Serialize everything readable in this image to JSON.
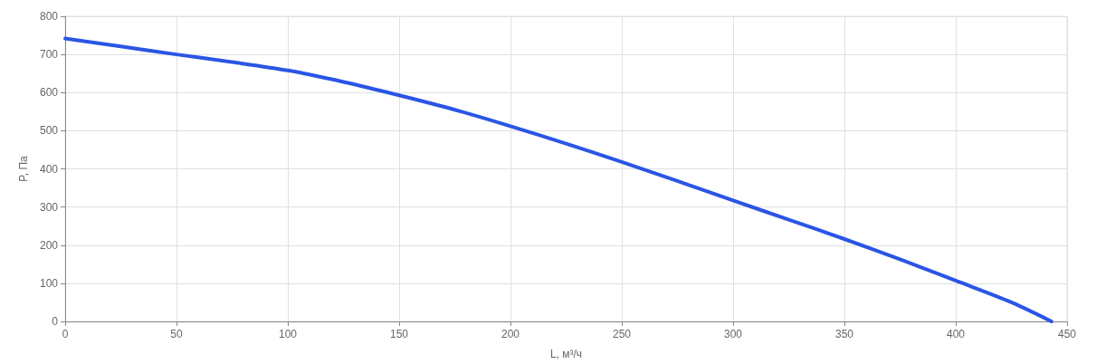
{
  "chart_data": {
    "type": "line",
    "xlabel": "L, м³/ч",
    "ylabel": "P, Па",
    "x": [
      0,
      25,
      50,
      75,
      100,
      125,
      150,
      175,
      200,
      225,
      250,
      275,
      300,
      325,
      350,
      375,
      400,
      425,
      443
    ],
    "series": [
      {
        "color": "#2a55e5",
        "values": [
          742,
          721,
          700,
          680,
          658,
          628,
          593,
          555,
          512,
          466,
          418,
          368,
          317,
          267,
          216,
          163,
          107,
          50,
          0
        ]
      }
    ],
    "xlim": [
      0,
      450
    ],
    "xticks": [
      0,
      50,
      100,
      150,
      200,
      250,
      300,
      350,
      400,
      450
    ],
    "ylim": [
      0,
      800
    ],
    "yticks": [
      0,
      100,
      200,
      300,
      400,
      500,
      600,
      700,
      800
    ],
    "grid": true,
    "marker": "none",
    "line_style": "solid"
  }
}
